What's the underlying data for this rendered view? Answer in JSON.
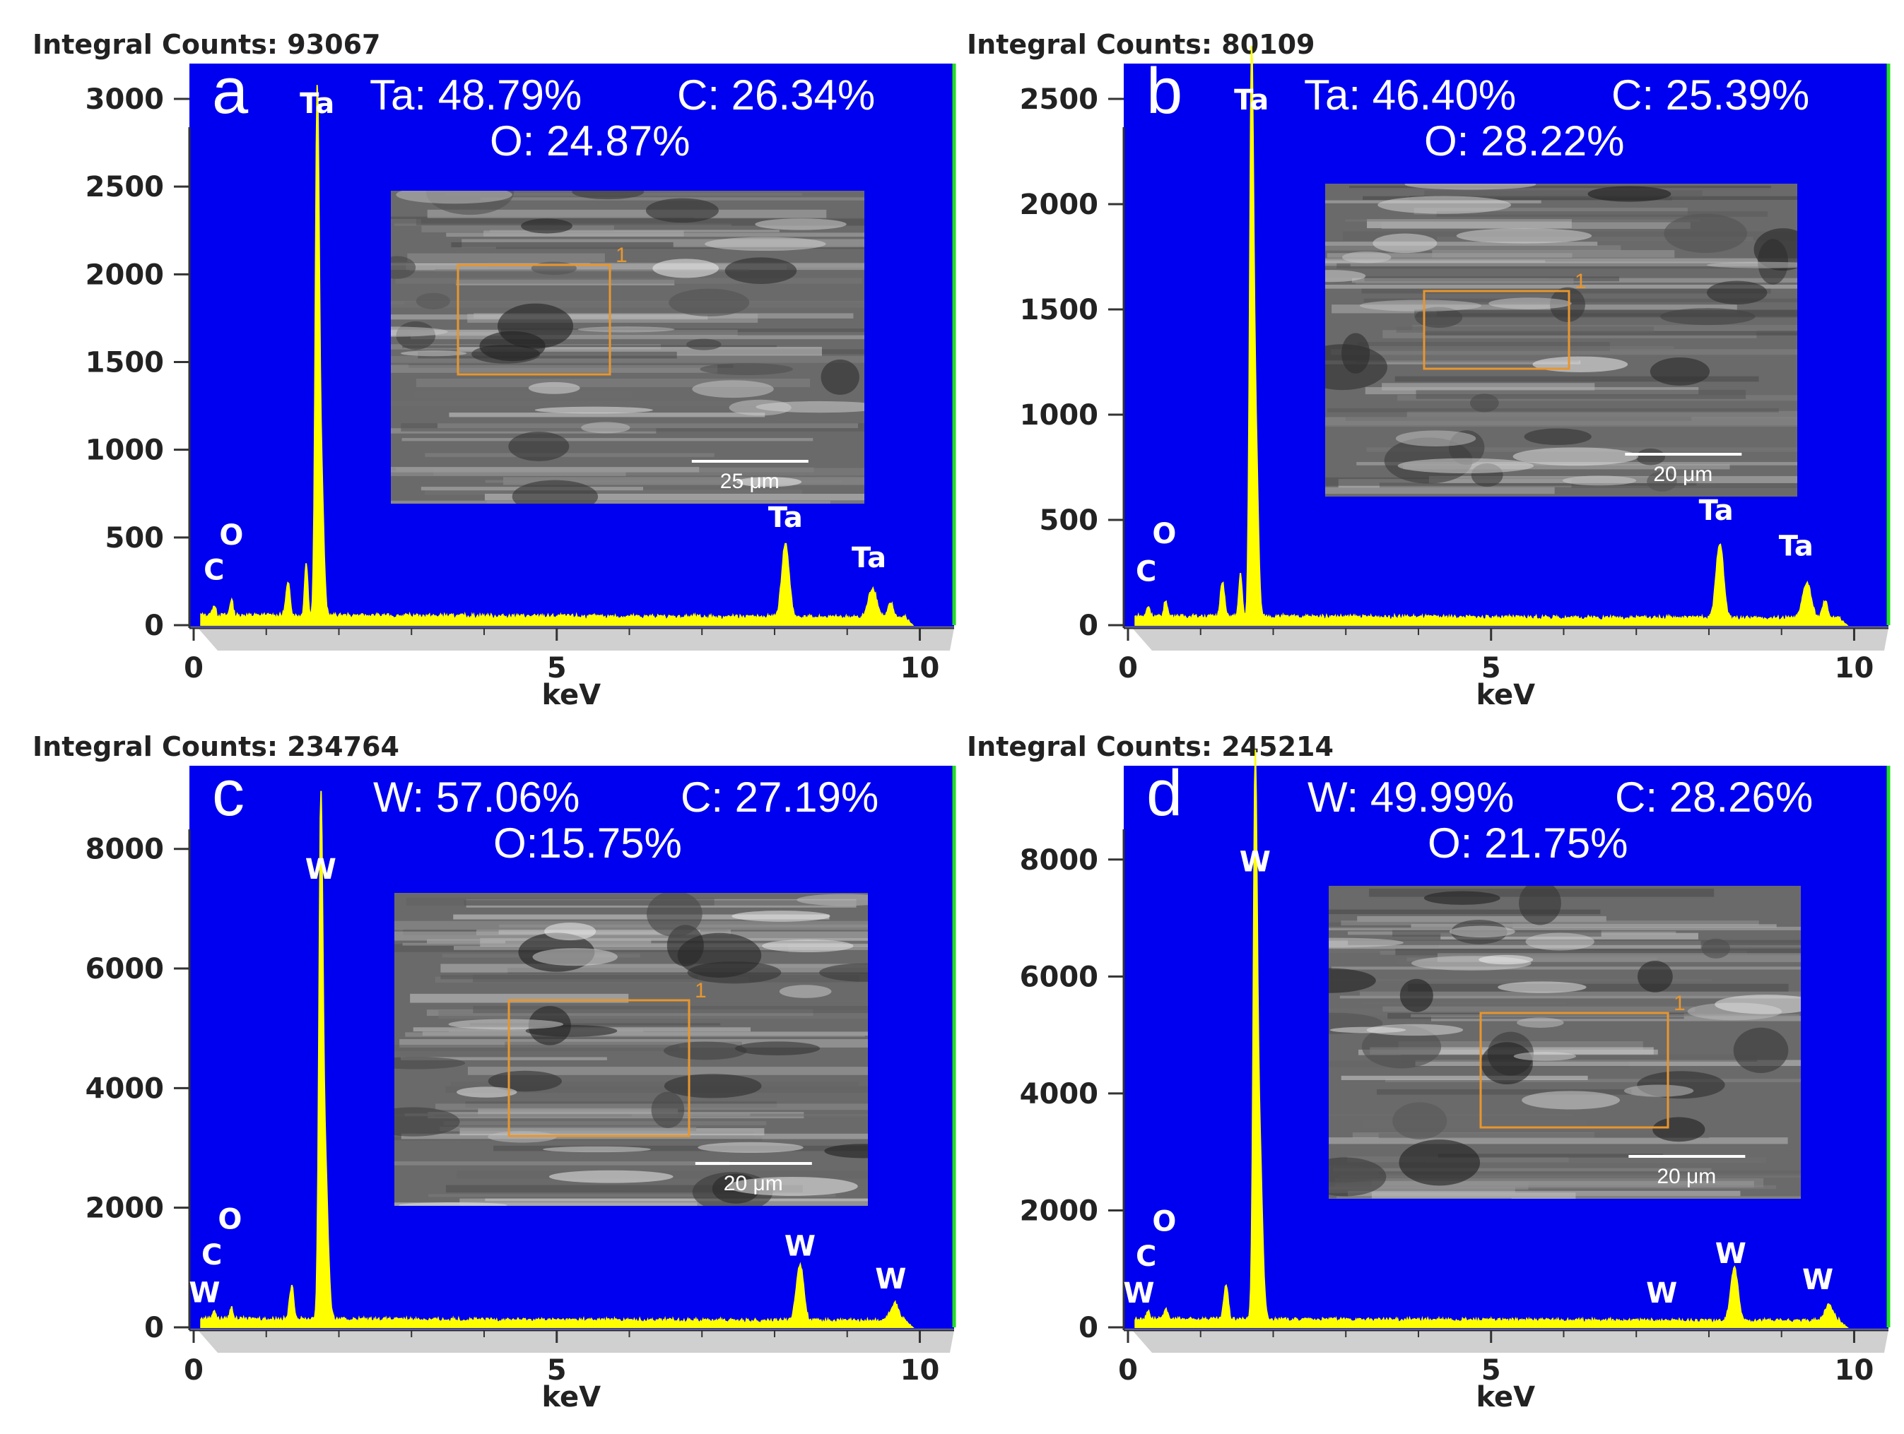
{
  "chart_data": [
    {
      "type": "line",
      "panel": "a",
      "integral_counts_label": "Integral Counts: 93067",
      "xlabel": "keV",
      "xlim": [
        0,
        10.2
      ],
      "ylim": [
        0,
        3000
      ],
      "xticks": [
        "0",
        "5",
        "10"
      ],
      "yticks": [
        "0",
        "500",
        "1000",
        "1500",
        "2000",
        "2500",
        "3000"
      ],
      "composition": [
        "Ta: 48.79%",
        "C: 26.34%",
        "O: 24.87%"
      ],
      "scale_bar": "25 μm",
      "region_marker": "1",
      "peak_labels": [
        {
          "text": "C",
          "x": 0.28,
          "y": 260
        },
        {
          "text": "O",
          "x": 0.52,
          "y": 460
        },
        {
          "text": "Ta",
          "x": 1.7,
          "y": 2920
        },
        {
          "text": "Ta",
          "x": 8.15,
          "y": 560
        },
        {
          "text": "Ta",
          "x": 9.3,
          "y": 330
        }
      ],
      "series": [
        {
          "color": "#ffff00",
          "baseline": 40,
          "peaks": [
            [
              0.28,
              60,
              0.03
            ],
            [
              0.52,
              90,
              0.03
            ],
            [
              1.3,
              180,
              0.04
            ],
            [
              1.55,
              300,
              0.03
            ],
            [
              1.7,
              2700,
              0.035
            ],
            [
              1.75,
              900,
              0.05
            ],
            [
              8.15,
              420,
              0.07
            ],
            [
              9.35,
              170,
              0.08
            ],
            [
              9.6,
              80,
              0.05
            ]
          ]
        }
      ]
    },
    {
      "type": "line",
      "panel": "b",
      "integral_counts_label": "Integral Counts: 80109",
      "xlabel": "keV",
      "xlim": [
        0,
        10.2
      ],
      "ylim": [
        0,
        2500
      ],
      "xticks": [
        "0",
        "5",
        "10"
      ],
      "yticks": [
        "0",
        "500",
        "1000",
        "1500",
        "2000",
        "2500"
      ],
      "composition": [
        "Ta: 46.40%",
        "C: 25.39%",
        "O: 28.22%"
      ],
      "scale_bar": "20 μm",
      "region_marker": "1",
      "peak_labels": [
        {
          "text": "C",
          "x": 0.25,
          "y": 210
        },
        {
          "text": "O",
          "x": 0.5,
          "y": 390
        },
        {
          "text": "Ta",
          "x": 1.7,
          "y": 2450
        },
        {
          "text": "Ta",
          "x": 8.1,
          "y": 500
        },
        {
          "text": "Ta",
          "x": 9.2,
          "y": 330
        }
      ],
      "series": [
        {
          "color": "#ffff00",
          "baseline": 30,
          "peaks": [
            [
              0.28,
              50,
              0.03
            ],
            [
              0.52,
              80,
              0.03
            ],
            [
              1.3,
              160,
              0.04
            ],
            [
              1.55,
              200,
              0.03
            ],
            [
              1.7,
              2330,
              0.035
            ],
            [
              1.75,
              1000,
              0.05
            ],
            [
              8.15,
              360,
              0.07
            ],
            [
              9.35,
              170,
              0.08
            ],
            [
              9.6,
              80,
              0.05
            ]
          ]
        }
      ]
    },
    {
      "type": "line",
      "panel": "c",
      "integral_counts_label": "Integral Counts: 234764",
      "xlabel": "keV",
      "xlim": [
        0,
        10.2
      ],
      "ylim": [
        0,
        8800
      ],
      "xticks": [
        "0",
        "5",
        "10"
      ],
      "yticks": [
        "0",
        "2000",
        "4000",
        "6000",
        "8000"
      ],
      "composition": [
        "W: 57.06%",
        "C: 27.19%",
        "O:15.75%"
      ],
      "scale_bar": "20 μm",
      "region_marker": "1",
      "peak_labels": [
        {
          "text": "W",
          "x": 0.15,
          "y": 420
        },
        {
          "text": "C",
          "x": 0.25,
          "y": 1050
        },
        {
          "text": "O",
          "x": 0.5,
          "y": 1650
        },
        {
          "text": "W",
          "x": 1.75,
          "y": 7500
        },
        {
          "text": "W",
          "x": 8.35,
          "y": 1200
        },
        {
          "text": "W",
          "x": 9.6,
          "y": 650
        }
      ],
      "series": [
        {
          "color": "#ffff00",
          "baseline": 100,
          "peaks": [
            [
              0.28,
              150,
              0.03
            ],
            [
              0.52,
              200,
              0.03
            ],
            [
              1.35,
              550,
              0.04
            ],
            [
              1.75,
              7300,
              0.035
            ],
            [
              1.8,
              3000,
              0.06
            ],
            [
              8.35,
              950,
              0.07
            ],
            [
              9.65,
              300,
              0.08
            ]
          ]
        }
      ]
    },
    {
      "type": "line",
      "panel": "d",
      "integral_counts_label": "Integral Counts: 245214",
      "xlabel": "keV",
      "xlim": [
        0,
        10.2
      ],
      "ylim": [
        0,
        9000
      ],
      "xticks": [
        "0",
        "5",
        "10"
      ],
      "yticks": [
        "0",
        "2000",
        "4000",
        "6000",
        "8000"
      ],
      "composition": [
        "W: 49.99%",
        "C: 28.26%",
        "O: 21.75%"
      ],
      "scale_bar": "20 μm",
      "region_marker": "1",
      "peak_labels": [
        {
          "text": "W",
          "x": 0.15,
          "y": 420
        },
        {
          "text": "C",
          "x": 0.25,
          "y": 1050
        },
        {
          "text": "O",
          "x": 0.5,
          "y": 1650
        },
        {
          "text": "W",
          "x": 1.75,
          "y": 7800
        },
        {
          "text": "W",
          "x": 7.35,
          "y": 420
        },
        {
          "text": "W",
          "x": 8.3,
          "y": 1100
        },
        {
          "text": "W",
          "x": 9.5,
          "y": 650
        }
      ],
      "series": [
        {
          "color": "#ffff00",
          "baseline": 100,
          "peaks": [
            [
              0.28,
              150,
              0.03
            ],
            [
              0.52,
              200,
              0.03
            ],
            [
              1.35,
              600,
              0.04
            ],
            [
              1.75,
              7900,
              0.035
            ],
            [
              1.8,
              3500,
              0.06
            ],
            [
              8.35,
              900,
              0.07
            ],
            [
              9.65,
              280,
              0.08
            ]
          ]
        }
      ]
    }
  ]
}
